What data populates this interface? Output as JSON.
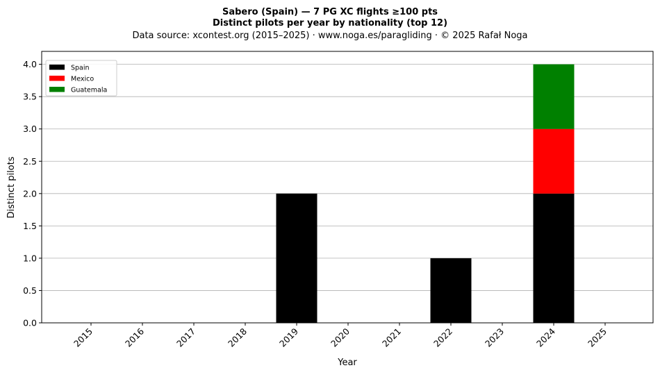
{
  "title_line1": "Sabero (Spain)  —  7 PG XC flights ≥100 pts",
  "title_line2": "Distinct pilots per year by nationality (top 12)",
  "subtitle": "Data source: xcontest.org (2015–2025)  ·  www.noga.es/paragliding  ·  © 2025 Rafał Noga",
  "chart_data": {
    "type": "bar",
    "stacked": true,
    "title": "Sabero (Spain)  —  7 PG XC flights ≥100 pts\nDistinct pilots per year by nationality (top 12)",
    "xlabel": "Year",
    "ylabel": "Distinct pilots",
    "ylim": [
      0,
      4.2
    ],
    "yticks": [
      "0.0",
      "0.5",
      "1.0",
      "1.5",
      "2.0",
      "2.5",
      "3.0",
      "3.5",
      "4.0"
    ],
    "categories": [
      "2015",
      "2016",
      "2017",
      "2018",
      "2019",
      "2020",
      "2021",
      "2022",
      "2023",
      "2024",
      "2025"
    ],
    "series": [
      {
        "name": "Spain",
        "color": "#000000",
        "values": [
          0,
          0,
          0,
          0,
          2,
          0,
          0,
          1,
          0,
          2,
          0
        ]
      },
      {
        "name": "Mexico",
        "color": "#ff0000",
        "values": [
          0,
          0,
          0,
          0,
          0,
          0,
          0,
          0,
          0,
          1,
          0
        ]
      },
      {
        "name": "Guatemala",
        "color": "#008000",
        "values": [
          0,
          0,
          0,
          0,
          0,
          0,
          0,
          0,
          0,
          1,
          0
        ]
      }
    ],
    "grid": "horizontal",
    "legend_position": "top-left"
  }
}
